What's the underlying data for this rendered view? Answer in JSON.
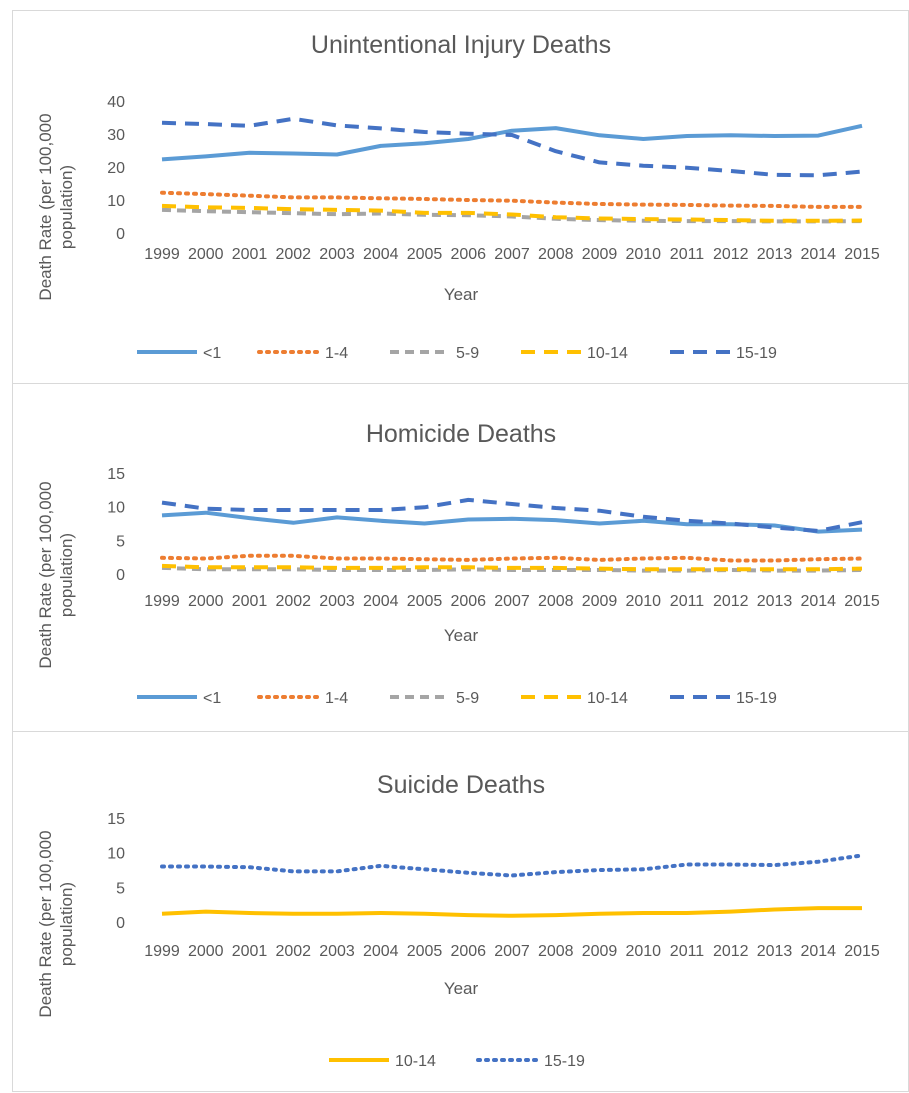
{
  "chart_data": [
    {
      "type": "line",
      "title": "Unintentional Injury Deaths",
      "xlabel": "Year",
      "ylabel": "Death Rate (per 100,000 population)",
      "ylim": [
        0,
        40
      ],
      "yticks": [
        0,
        10,
        20,
        30,
        40
      ],
      "grid": false,
      "legend": "bottom",
      "categories": [
        "1999",
        "2000",
        "2001",
        "2002",
        "2003",
        "2004",
        "2005",
        "2006",
        "2007",
        "2008",
        "2009",
        "2010",
        "2011",
        "2012",
        "2013",
        "2014",
        "2015"
      ],
      "series": [
        {
          "name": "<1",
          "color": "#5b9bd5",
          "dash": "solid",
          "values": [
            22.3,
            23.2,
            24.3,
            24.1,
            23.8,
            26.4,
            27.2,
            28.5,
            31.0,
            31.8,
            29.6,
            28.5,
            29.4,
            29.6,
            29.4,
            29.5,
            32.5
          ]
        },
        {
          "name": "1-4",
          "color": "#ed7d31",
          "dash": "dot",
          "values": [
            12.2,
            11.8,
            11.3,
            10.8,
            10.8,
            10.5,
            10.3,
            10.0,
            9.8,
            9.2,
            8.8,
            8.6,
            8.5,
            8.3,
            8.2,
            7.9,
            7.9
          ]
        },
        {
          "name": "5-9",
          "color": "#a5a5a5",
          "dash": "dash",
          "values": [
            7.0,
            6.6,
            6.3,
            6.0,
            5.7,
            5.9,
            5.5,
            5.4,
            5.0,
            4.3,
            3.9,
            3.7,
            3.6,
            3.6,
            3.5,
            3.5,
            3.6
          ]
        },
        {
          "name": "10-14",
          "color": "#ffc000",
          "dash": "longdash",
          "values": [
            8.2,
            7.8,
            7.6,
            7.2,
            7.0,
            6.8,
            6.1,
            6.1,
            5.6,
            4.8,
            4.4,
            4.2,
            4.1,
            3.9,
            3.7,
            3.7,
            3.8
          ]
        },
        {
          "name": "15-19",
          "color": "#4472c4",
          "dash": "longdash",
          "values": [
            33.4,
            33.0,
            32.5,
            34.6,
            32.6,
            31.7,
            30.6,
            30.1,
            29.7,
            24.8,
            21.4,
            20.4,
            19.8,
            18.8,
            17.6,
            17.5,
            18.6
          ]
        }
      ]
    },
    {
      "type": "line",
      "title": "Homicide Deaths",
      "xlabel": "Year",
      "ylabel": "Death Rate (per 100,000 population)",
      "ylim": [
        0,
        15
      ],
      "yticks": [
        0,
        5,
        10,
        15
      ],
      "grid": false,
      "legend": "bottom",
      "categories": [
        "1999",
        "2000",
        "2001",
        "2002",
        "2003",
        "2004",
        "2005",
        "2006",
        "2007",
        "2008",
        "2009",
        "2010",
        "2011",
        "2012",
        "2013",
        "2014",
        "2015"
      ],
      "series": [
        {
          "name": "<1",
          "color": "#5b9bd5",
          "dash": "solid",
          "values": [
            8.7,
            9.1,
            8.3,
            7.6,
            8.4,
            7.9,
            7.5,
            8.1,
            8.2,
            8.0,
            7.5,
            7.9,
            7.4,
            7.4,
            7.2,
            6.3,
            6.6
          ]
        },
        {
          "name": "1-4",
          "color": "#ed7d31",
          "dash": "dot",
          "values": [
            2.4,
            2.3,
            2.7,
            2.7,
            2.3,
            2.3,
            2.2,
            2.1,
            2.3,
            2.4,
            2.1,
            2.3,
            2.4,
            2.0,
            2.0,
            2.2,
            2.3
          ]
        },
        {
          "name": "5-9",
          "color": "#a5a5a5",
          "dash": "dash",
          "values": [
            0.9,
            0.7,
            0.7,
            0.7,
            0.6,
            0.6,
            0.6,
            0.7,
            0.6,
            0.6,
            0.6,
            0.5,
            0.5,
            0.6,
            0.5,
            0.5,
            0.6
          ]
        },
        {
          "name": "10-14",
          "color": "#ffc000",
          "dash": "longdash",
          "values": [
            1.2,
            1.0,
            1.0,
            1.0,
            0.9,
            0.9,
            1.0,
            1.0,
            0.9,
            0.9,
            0.8,
            0.7,
            0.7,
            0.7,
            0.7,
            0.7,
            0.8
          ]
        },
        {
          "name": "15-19",
          "color": "#4472c4",
          "dash": "longdash",
          "values": [
            10.6,
            9.7,
            9.5,
            9.5,
            9.5,
            9.5,
            9.9,
            11.0,
            10.4,
            9.8,
            9.4,
            8.5,
            7.9,
            7.5,
            6.9,
            6.4,
            7.7
          ]
        }
      ]
    },
    {
      "type": "line",
      "title": "Suicide Deaths",
      "xlabel": "Year",
      "ylabel": "Death Rate (per 100,000 population)",
      "ylim": [
        0,
        15
      ],
      "yticks": [
        0,
        5,
        10,
        15
      ],
      "grid": false,
      "legend": "bottom",
      "categories": [
        "1999",
        "2000",
        "2001",
        "2002",
        "2003",
        "2004",
        "2005",
        "2006",
        "2007",
        "2008",
        "2009",
        "2010",
        "2011",
        "2012",
        "2013",
        "2014",
        "2015"
      ],
      "series": [
        {
          "name": "10-14",
          "color": "#ffc000",
          "dash": "solid",
          "values": [
            1.2,
            1.5,
            1.3,
            1.2,
            1.2,
            1.3,
            1.2,
            1.0,
            0.9,
            1.0,
            1.2,
            1.3,
            1.3,
            1.5,
            1.8,
            2.0,
            2.0
          ]
        },
        {
          "name": "15-19",
          "color": "#4472c4",
          "dash": "dot",
          "values": [
            8.0,
            8.0,
            7.9,
            7.3,
            7.3,
            8.1,
            7.6,
            7.1,
            6.7,
            7.2,
            7.5,
            7.6,
            8.3,
            8.3,
            8.2,
            8.7,
            9.6
          ]
        }
      ]
    }
  ]
}
